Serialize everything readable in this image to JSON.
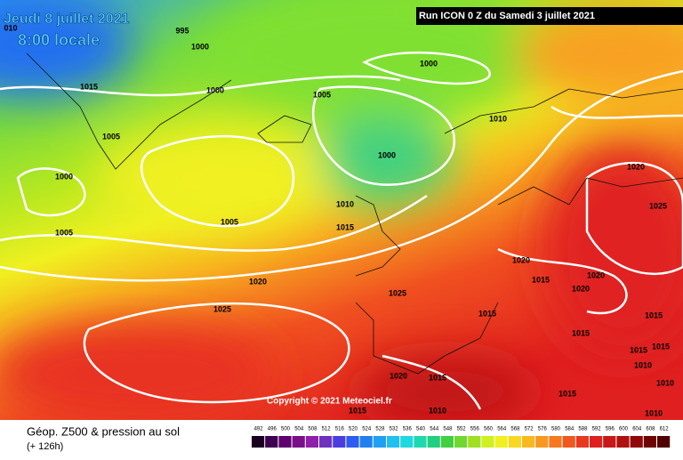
{
  "header": {
    "date": "Jeudi 8 juillet 2021",
    "time": "8:00 locale",
    "run": "Run ICON 0 Z du Samedi 3 juillet 2021"
  },
  "copyright": "Copyright © 2021 Meteociel.fr",
  "isobar_labels": [
    "010",
    "995",
    "1000",
    "1000",
    "1015",
    "1000",
    "1005",
    "1010",
    "1005",
    "1000",
    "1020",
    "1000",
    "1025",
    "1010",
    "1005",
    "1015",
    "1005",
    "1020",
    "1015",
    "1020",
    "1020",
    "1020",
    "1025",
    "1025",
    "1015",
    "1015",
    "1015",
    "1015",
    "1015",
    "1010",
    "1020",
    "1015",
    "1015",
    "1010",
    "1010",
    "1015",
    "1010"
  ],
  "legend": {
    "title": "Géop. Z500 & pression au sol",
    "subtitle": "(+ 126h)",
    "labels": [
      "492",
      "496",
      "500",
      "504",
      "508",
      "512",
      "516",
      "520",
      "524",
      "528",
      "532",
      "536",
      "540",
      "544",
      "548",
      "552",
      "556",
      "560",
      "564",
      "568",
      "572",
      "576",
      "580",
      "584",
      "588",
      "592",
      "596",
      "600",
      "604",
      "608",
      "612"
    ],
    "colors": [
      "#1a0020",
      "#3d0050",
      "#5e0070",
      "#7a1088",
      "#9020a8",
      "#7030c0",
      "#4a3ee0",
      "#2f5cf0",
      "#2080f0",
      "#20a0f0",
      "#20c0f0",
      "#20d8e0",
      "#20d8b0",
      "#20d080",
      "#40d040",
      "#70d830",
      "#a0e020",
      "#d0f020",
      "#f0f020",
      "#f8d820",
      "#f8b820",
      "#f89820",
      "#f87820",
      "#f05820",
      "#e83820",
      "#e02020",
      "#c81818",
      "#b01010",
      "#900808",
      "#700404",
      "#500000"
    ]
  }
}
